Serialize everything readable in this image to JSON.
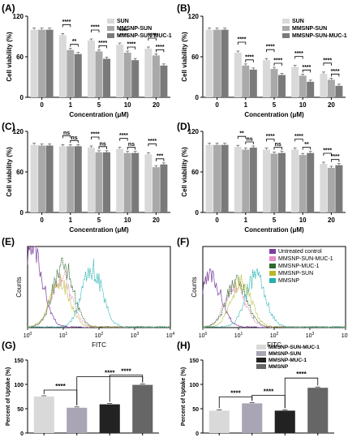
{
  "figure": {
    "panel_labels": [
      "(A)",
      "(B)",
      "(C)",
      "(D)",
      "(E)",
      "(F)",
      "(G)",
      "(H)"
    ]
  },
  "chart_data": [
    {
      "panel": "(A)",
      "type": "bar",
      "categories": [
        "0",
        "1",
        "5",
        "10",
        "20"
      ],
      "xlabel": "Concentration (μM)",
      "ylabel": "Cell viability (%)",
      "ylim": [
        0,
        120
      ],
      "yticks": [
        0,
        60,
        120
      ],
      "series": [
        {
          "name": "SUN",
          "color": "#d9d9d9",
          "values": [
            100,
            92,
            84,
            78,
            72
          ]
        },
        {
          "name": "MMSNP-SUN",
          "color": "#a9a9a9",
          "values": [
            100,
            70,
            68,
            66,
            62
          ]
        },
        {
          "name": "MMSNP-SUN-MUC-1",
          "color": "#7a7a7a",
          "values": [
            100,
            64,
            57,
            55,
            47
          ]
        }
      ],
      "legend": "top-right",
      "brackets": [
        {
          "cat": 1,
          "from": 0,
          "to": 1,
          "label": "****"
        },
        {
          "cat": 1,
          "from": 1,
          "to": 2,
          "label": "**"
        },
        {
          "cat": 2,
          "from": 0,
          "to": 1,
          "label": "****"
        },
        {
          "cat": 2,
          "from": 1,
          "to": 2,
          "label": "****"
        },
        {
          "cat": 3,
          "from": 0,
          "to": 1,
          "label": "****"
        },
        {
          "cat": 3,
          "from": 1,
          "to": 2,
          "label": "****"
        },
        {
          "cat": 4,
          "from": 0,
          "to": 1,
          "label": "****"
        },
        {
          "cat": 4,
          "from": 1,
          "to": 2,
          "label": "****"
        }
      ]
    },
    {
      "panel": "(B)",
      "type": "bar",
      "categories": [
        "0",
        "1",
        "5",
        "10",
        "20"
      ],
      "xlabel": "Concentration (μM)",
      "ylabel": "Cell viability (%)",
      "ylim": [
        0,
        120
      ],
      "yticks": [
        0,
        60,
        120
      ],
      "series": [
        {
          "name": "SUN",
          "color": "#d9d9d9",
          "values": [
            100,
            66,
            55,
            45,
            35
          ]
        },
        {
          "name": "MMSNP-SUN",
          "color": "#a9a9a9",
          "values": [
            100,
            47,
            42,
            32,
            26
          ]
        },
        {
          "name": "MMSNP-SUN-MUC-1",
          "color": "#7a7a7a",
          "values": [
            100,
            41,
            33,
            23,
            17
          ]
        }
      ],
      "legend": "top-right",
      "brackets": [
        {
          "cat": 1,
          "from": 0,
          "to": 1,
          "label": "****"
        },
        {
          "cat": 1,
          "from": 1,
          "to": 2,
          "label": "****"
        },
        {
          "cat": 2,
          "from": 0,
          "to": 1,
          "label": "****"
        },
        {
          "cat": 2,
          "from": 1,
          "to": 2,
          "label": "****"
        },
        {
          "cat": 3,
          "from": 0,
          "to": 1,
          "label": "****"
        },
        {
          "cat": 3,
          "from": 1,
          "to": 2,
          "label": "****"
        },
        {
          "cat": 4,
          "from": 0,
          "to": 1,
          "label": "****"
        },
        {
          "cat": 4,
          "from": 1,
          "to": 2,
          "label": "****"
        }
      ]
    },
    {
      "panel": "(C)",
      "type": "bar",
      "categories": [
        "0",
        "1",
        "5",
        "10",
        "20"
      ],
      "xlabel": "Concentration (μM)",
      "ylabel": "Cell viability (%)",
      "ylim": [
        0,
        120
      ],
      "yticks": [
        0,
        60,
        120
      ],
      "series": [
        {
          "name": "SUN",
          "color": "#d9d9d9",
          "values": [
            100,
            98,
            96,
            94,
            86
          ]
        },
        {
          "name": "MMSNP-SUN",
          "color": "#a9a9a9",
          "values": [
            99,
            98,
            89,
            88,
            67
          ]
        },
        {
          "name": "MMSNP-SUN-MUC-1",
          "color": "#7a7a7a",
          "values": [
            99,
            98,
            89,
            88,
            71
          ]
        }
      ],
      "brackets": [
        {
          "cat": 1,
          "from": 0,
          "to": 1,
          "label": "ns"
        },
        {
          "cat": 1,
          "from": 1,
          "to": 2,
          "label": "ns"
        },
        {
          "cat": 2,
          "from": 0,
          "to": 1,
          "label": "****"
        },
        {
          "cat": 2,
          "from": 1,
          "to": 2,
          "label": "ns"
        },
        {
          "cat": 3,
          "from": 0,
          "to": 1,
          "label": "****"
        },
        {
          "cat": 3,
          "from": 1,
          "to": 2,
          "label": "ns"
        },
        {
          "cat": 4,
          "from": 0,
          "to": 1,
          "label": "****"
        },
        {
          "cat": 4,
          "from": 1,
          "to": 2,
          "label": "***"
        }
      ]
    },
    {
      "panel": "(D)",
      "type": "bar",
      "categories": [
        "0",
        "1",
        "5",
        "10",
        "20"
      ],
      "xlabel": "Concentration (μM)",
      "ylabel": "Cell viability (%)",
      "ylim": [
        0,
        120
      ],
      "yticks": [
        0,
        60,
        120
      ],
      "series": [
        {
          "name": "SUN",
          "color": "#d9d9d9",
          "values": [
            100,
            97,
            93,
            93,
            72
          ]
        },
        {
          "name": "MMSNP-SUN",
          "color": "#a9a9a9",
          "values": [
            100,
            93,
            87,
            85,
            66
          ]
        },
        {
          "name": "MMSNP-SUN-MUC-1",
          "color": "#7a7a7a",
          "values": [
            100,
            96,
            88,
            88,
            70
          ]
        }
      ],
      "brackets": [
        {
          "cat": 1,
          "from": 0,
          "to": 1,
          "label": "**"
        },
        {
          "cat": 1,
          "from": 1,
          "to": 2,
          "label": "ns"
        },
        {
          "cat": 2,
          "from": 0,
          "to": 1,
          "label": "****"
        },
        {
          "cat": 2,
          "from": 1,
          "to": 2,
          "label": "ns"
        },
        {
          "cat": 3,
          "from": 0,
          "to": 1,
          "label": "****"
        },
        {
          "cat": 3,
          "from": 1,
          "to": 2,
          "label": "**"
        },
        {
          "cat": 4,
          "from": 0,
          "to": 1,
          "label": "****"
        },
        {
          "cat": 4,
          "from": 1,
          "to": 2,
          "label": "****"
        }
      ]
    },
    {
      "panel": "(E)",
      "type": "line",
      "xlabel": "FITC",
      "ylabel": "Counts",
      "x_scale": "log",
      "xlim": [
        1,
        10000
      ],
      "series": [
        {
          "name": "Untreated control",
          "color": "#7b3f9e",
          "peak_x": 1.4,
          "height": 0.95
        },
        {
          "name": "MMSNP-SUN-MUC-1",
          "color": "#e58fc8",
          "peak_x": 9,
          "height": 0.62
        },
        {
          "name": "MMSNP-MUC-1",
          "color": "#2e6b2e",
          "peak_x": 10,
          "height": 0.78
        },
        {
          "name": "MMSNP-SUN",
          "color": "#b8b82a",
          "peak_x": 8,
          "height": 0.55
        },
        {
          "name": "MMSNP",
          "color": "#24b0b0",
          "peak_x": 65,
          "height": 0.72
        }
      ]
    },
    {
      "panel": "(F)",
      "type": "line",
      "xlabel": "FITC",
      "ylabel": "Counts",
      "x_scale": "log",
      "xlim": [
        1,
        10000
      ],
      "legend": "top-right",
      "series": [
        {
          "name": "Untreated control",
          "color": "#7b3f9e",
          "peak_x": 1.7,
          "height": 0.62
        },
        {
          "name": "MMSNP-SUN-MUC-1",
          "color": "#e58fc8",
          "peak_x": 8,
          "height": 0.52
        },
        {
          "name": "MMSNP-MUC-1",
          "color": "#2e6b2e",
          "peak_x": 9,
          "height": 0.58
        },
        {
          "name": "MMSNP-SUN",
          "color": "#b8b82a",
          "peak_x": 12,
          "height": 0.55
        },
        {
          "name": "MMSNP",
          "color": "#24b0b0",
          "peak_x": 30,
          "height": 0.62
        }
      ]
    },
    {
      "panel": "(G)",
      "type": "bar",
      "categories": [
        "MMSNP-SUN-MUC-1",
        "MMSNP-SUN",
        "MMSNP-MUC-1",
        "MMSNP"
      ],
      "values": [
        75,
        52,
        59,
        99
      ],
      "colors": [
        "#d9d9d9",
        "#a9a5b5",
        "#222222",
        "#666666"
      ],
      "ylabel": "Percent of Uptake (%)",
      "ylim": [
        0,
        150
      ],
      "yticks": [
        0,
        50,
        100,
        150
      ],
      "legend": "none",
      "brackets": [
        {
          "from": 0,
          "to": 1,
          "label": "****"
        },
        {
          "from": 1,
          "to": 3,
          "label": "****"
        },
        {
          "from": 2,
          "to": 3,
          "label": "****"
        }
      ]
    },
    {
      "panel": "(H)",
      "type": "bar",
      "categories": [
        "MMSNP-SUN-MUC-1",
        "MMSNP-SUN",
        "MMSNP-MUC-1",
        "MMSNP"
      ],
      "values": [
        46,
        61,
        46,
        93
      ],
      "colors": [
        "#d9d9d9",
        "#a9a5b5",
        "#222222",
        "#666666"
      ],
      "ylabel": "Percent of Uptake (%)",
      "ylim": [
        0,
        150
      ],
      "yticks": [
        0,
        50,
        100,
        150
      ],
      "legend": "top-right",
      "brackets": [
        {
          "from": 0,
          "to": 1,
          "label": "****"
        },
        {
          "from": 1,
          "to": 2,
          "label": "****"
        },
        {
          "from": 2,
          "to": 3,
          "label": "****"
        }
      ]
    }
  ]
}
